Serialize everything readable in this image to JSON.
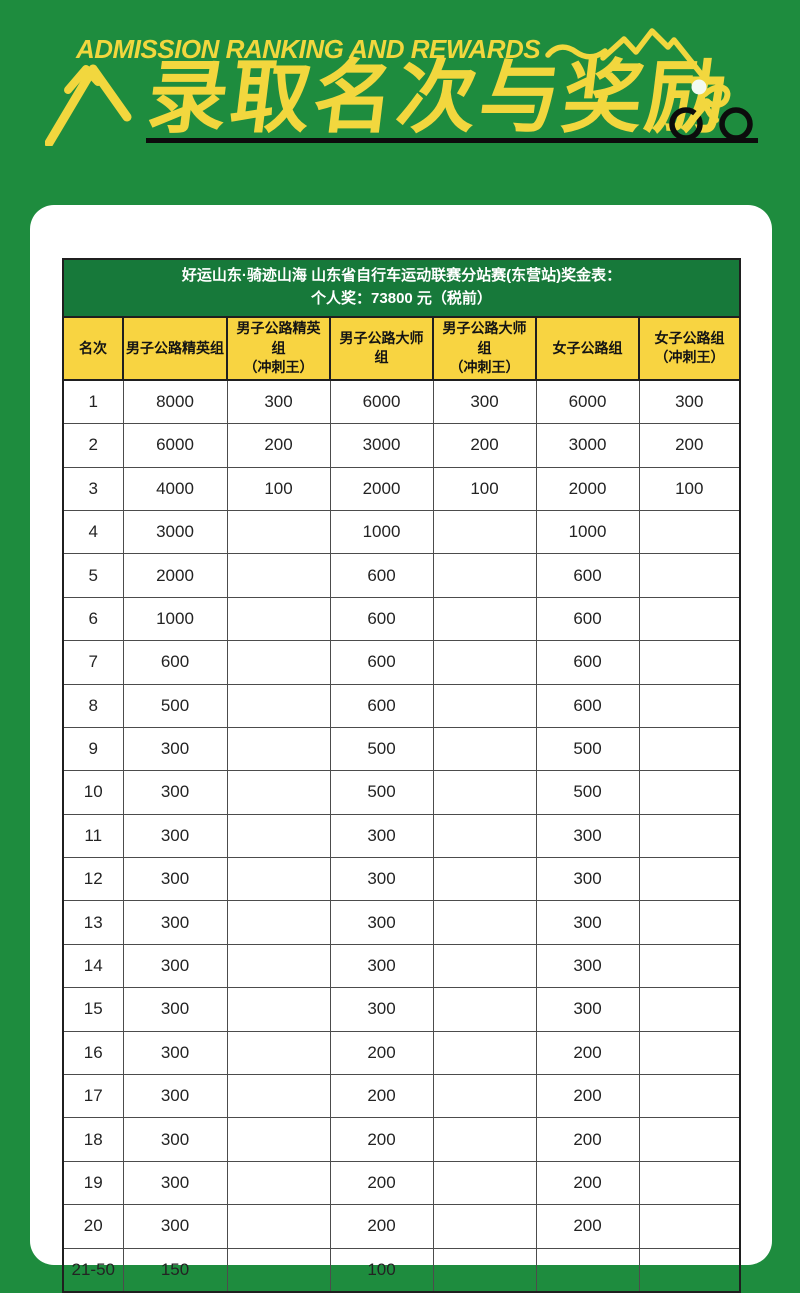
{
  "page": {
    "background_color": "#1E8C3E",
    "accent_yellow": "#F2D73E",
    "card_color": "#ffffff"
  },
  "header": {
    "eyebrow": "ADMISSION RANKING AND REWARDS",
    "title": "录取名次与奖励",
    "icons": {
      "left": "mountain-outline-icon",
      "right_of_eyebrow": "mountain-squiggle-icon",
      "right": "cyclist-icon"
    }
  },
  "table": {
    "caption_line1": "好运山东·骑迹山海 山东省自行车运动联赛分站赛(东营站)奖金表：",
    "caption_line2": "个人奖：73800 元（税前）",
    "caption_bg": "#17793A",
    "header_bg": "#F8D441",
    "columns": [
      "名次",
      "男子公路精英组",
      "男子公路精英组\n（冲刺王）",
      "男子公路大师组",
      "男子公路大师组\n（冲刺王）",
      "女子公路组",
      "女子公路组\n（冲刺王）"
    ],
    "rows": [
      [
        "1",
        "8000",
        "300",
        "6000",
        "300",
        "6000",
        "300"
      ],
      [
        "2",
        "6000",
        "200",
        "3000",
        "200",
        "3000",
        "200"
      ],
      [
        "3",
        "4000",
        "100",
        "2000",
        "100",
        "2000",
        "100"
      ],
      [
        "4",
        "3000",
        "",
        "1000",
        "",
        "1000",
        ""
      ],
      [
        "5",
        "2000",
        "",
        "600",
        "",
        "600",
        ""
      ],
      [
        "6",
        "1000",
        "",
        "600",
        "",
        "600",
        ""
      ],
      [
        "7",
        "600",
        "",
        "600",
        "",
        "600",
        ""
      ],
      [
        "8",
        "500",
        "",
        "600",
        "",
        "600",
        ""
      ],
      [
        "9",
        "300",
        "",
        "500",
        "",
        "500",
        ""
      ],
      [
        "10",
        "300",
        "",
        "500",
        "",
        "500",
        ""
      ],
      [
        "11",
        "300",
        "",
        "300",
        "",
        "300",
        ""
      ],
      [
        "12",
        "300",
        "",
        "300",
        "",
        "300",
        ""
      ],
      [
        "13",
        "300",
        "",
        "300",
        "",
        "300",
        ""
      ],
      [
        "14",
        "300",
        "",
        "300",
        "",
        "300",
        ""
      ],
      [
        "15",
        "300",
        "",
        "300",
        "",
        "300",
        ""
      ],
      [
        "16",
        "300",
        "",
        "200",
        "",
        "200",
        ""
      ],
      [
        "17",
        "300",
        "",
        "200",
        "",
        "200",
        ""
      ],
      [
        "18",
        "300",
        "",
        "200",
        "",
        "200",
        ""
      ],
      [
        "19",
        "300",
        "",
        "200",
        "",
        "200",
        ""
      ],
      [
        "20",
        "300",
        "",
        "200",
        "",
        "200",
        ""
      ],
      [
        "21-50",
        "150",
        "",
        "100",
        "",
        "",
        ""
      ]
    ]
  }
}
